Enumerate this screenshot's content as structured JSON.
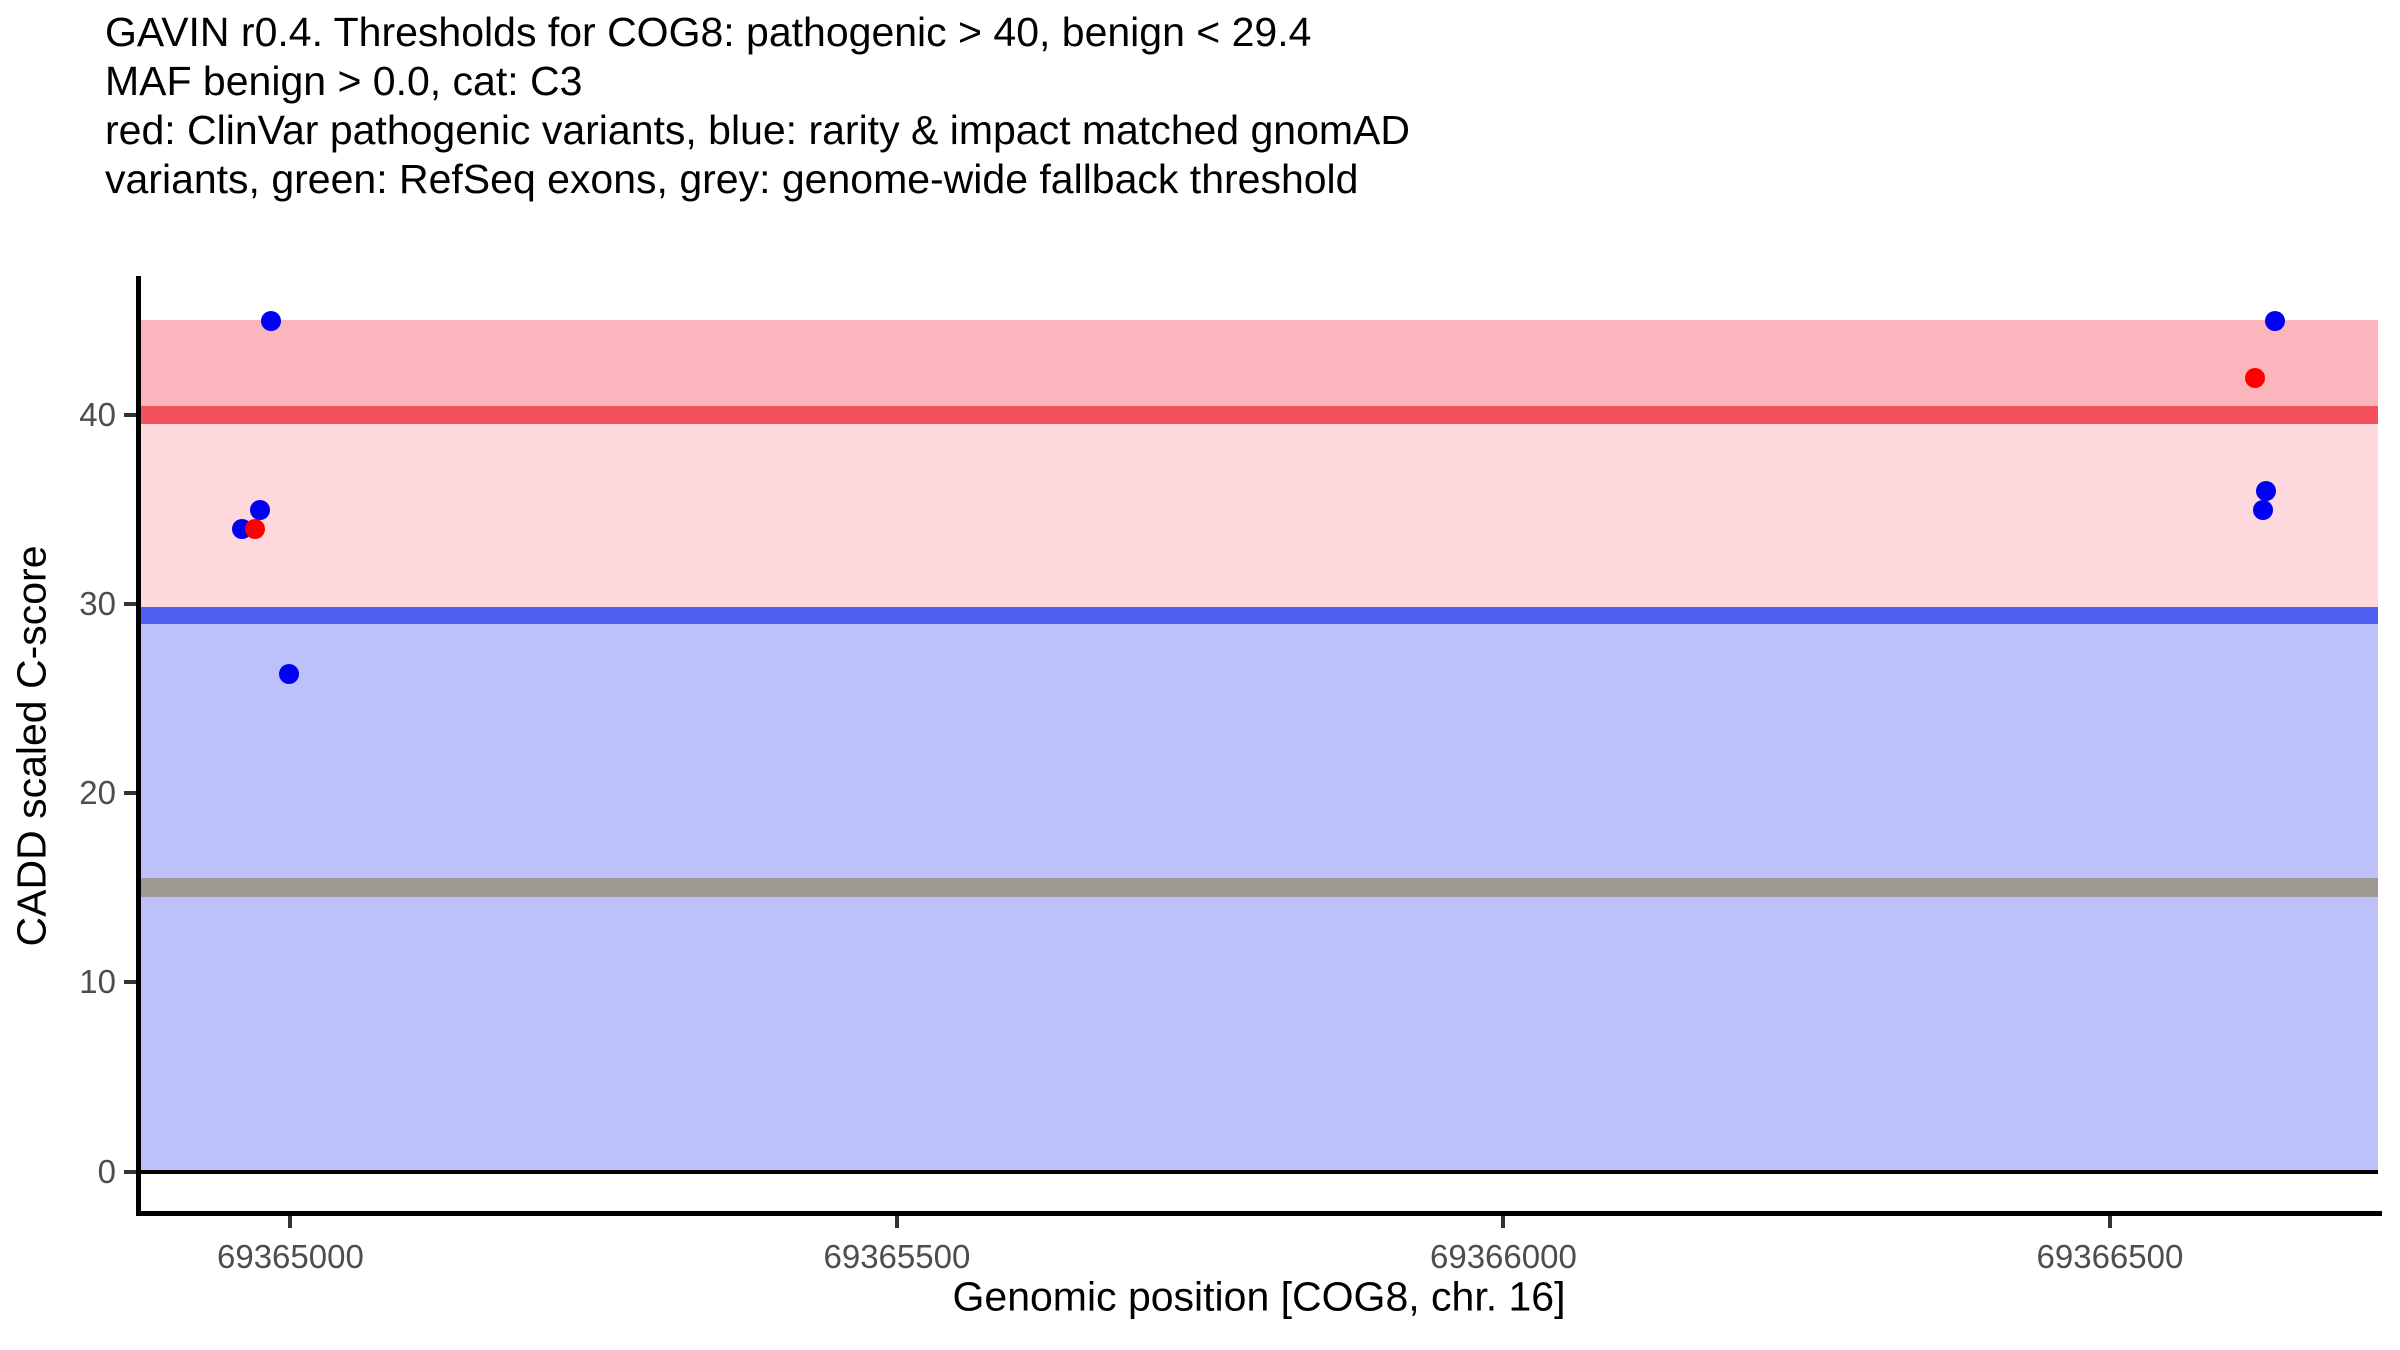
{
  "title": {
    "line1": "GAVIN r0.4. Thresholds for COG8: pathogenic > 40, benign < 29.4",
    "line2": "MAF benign > 0.0, cat: C3",
    "line3": "red: ClinVar pathogenic variants, blue: rarity & impact matched gnomAD",
    "line4": "variants, green: RefSeq exons, grey: genome-wide fallback threshold"
  },
  "axes": {
    "y_title": "CADD scaled C-score",
    "x_title": "Genomic position [COG8, chr. 16]"
  },
  "colors": {
    "background": "#ffffff",
    "band_pathogenic": "#fbb5bc",
    "band_grey_zone": "#fdd8dc",
    "band_benign": "#bcc2f9",
    "line_pathogenic": "#f5515c",
    "line_benign": "#4d5fee",
    "line_fallback": "#9d9a93",
    "line_zero": "#000000",
    "point_red": "#fe0000",
    "point_blue": "#0000f2",
    "axis_line": "#000000",
    "tick_label": "#4d4d4d"
  },
  "chart_data": {
    "type": "scatter",
    "title": "GAVIN r0.4. Thresholds for COG8: pathogenic > 40, benign < 29.4; MAF benign > 0.0, cat: C3",
    "xlabel": "Genomic position [COG8, chr. 16]",
    "ylabel": "CADD scaled C-score",
    "xlim": [
      69364876,
      69366721
    ],
    "ylim": [
      -2.3,
      47.27
    ],
    "grid": false,
    "legend": "none (described in title text)",
    "x_ticks": [
      {
        "value": 69365000,
        "label": "69365000"
      },
      {
        "value": 69365500,
        "label": "69365500"
      },
      {
        "value": 69366000,
        "label": "69366000"
      },
      {
        "value": 69366500,
        "label": "69366500"
      }
    ],
    "y_ticks": [
      {
        "value": 0,
        "label": "0"
      },
      {
        "value": 10,
        "label": "10"
      },
      {
        "value": 20,
        "label": "20"
      },
      {
        "value": 30,
        "label": "30"
      },
      {
        "value": 40,
        "label": "40"
      }
    ],
    "band_top": 45.05,
    "bands": [
      {
        "name": "grey-zone-band",
        "from": 29.4,
        "to": 45.05,
        "color": "band_grey_zone"
      },
      {
        "name": "pathogenic-band",
        "from": 40,
        "to": 45.05,
        "color": "band_pathogenic"
      },
      {
        "name": "benign-band",
        "from": 0,
        "to": 29.4,
        "color": "band_benign"
      }
    ],
    "hlines": [
      {
        "name": "pathogenic-threshold-line",
        "value": 40,
        "color": "line_pathogenic",
        "thickness": 18
      },
      {
        "name": "benign-threshold-line",
        "value": 29.4,
        "color": "line_benign",
        "thickness": 17
      },
      {
        "name": "genome-wide-fallback-line",
        "value": 15,
        "color": "line_fallback",
        "thickness": 19
      },
      {
        "name": "zero-line",
        "value": 0,
        "color": "line_zero",
        "thickness": 4
      }
    ],
    "series": [
      {
        "name": "ClinVar pathogenic variants",
        "color_key": "point_red"
      },
      {
        "name": "rarity & impact matched gnomAD variants",
        "color_key": "point_blue"
      }
    ],
    "points": [
      {
        "pos": 69364960,
        "cadd": 34.0,
        "series": "gnomAD"
      },
      {
        "pos": 69364971,
        "cadd": 34.0,
        "series": "ClinVar"
      },
      {
        "pos": 69364975,
        "cadd": 35.0,
        "series": "gnomAD"
      },
      {
        "pos": 69364984,
        "cadd": 45.0,
        "series": "gnomAD"
      },
      {
        "pos": 69364999,
        "cadd": 26.3,
        "series": "gnomAD"
      },
      {
        "pos": 69366620,
        "cadd": 42.0,
        "series": "ClinVar"
      },
      {
        "pos": 69366626,
        "cadd": 35.0,
        "series": "gnomAD"
      },
      {
        "pos": 69366629,
        "cadd": 36.0,
        "series": "gnomAD"
      },
      {
        "pos": 69366636,
        "cadd": 45.0,
        "series": "gnomAD"
      }
    ],
    "point_diameter": 20
  }
}
